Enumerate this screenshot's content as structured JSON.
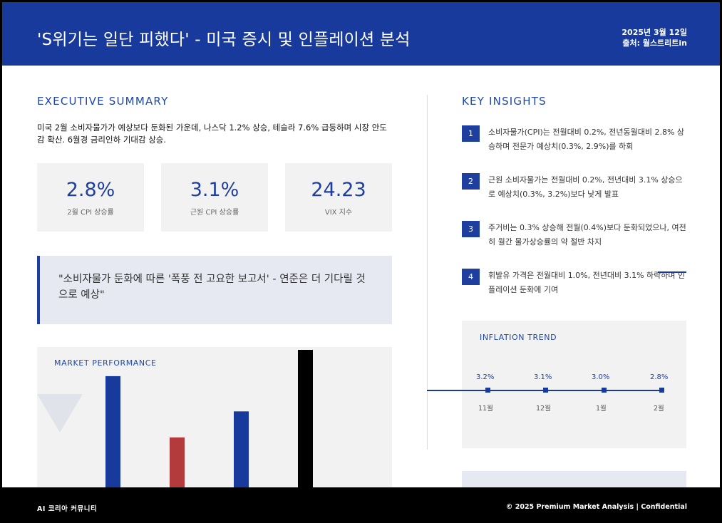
{
  "header": {
    "title": "'S위기는 일단 피했다' - 미국 증시 및 인플레이션 분석",
    "date": "2025년 3월 12일",
    "source": "출처: 월스트리트in"
  },
  "summary": {
    "heading": "EXECUTIVE SUMMARY",
    "text": "미국 2월 소비자물가가 예상보다 둔화된 가운데, 나스닥 1.2% 상승, 테슬라 7.6% 급등하며 시장 안도감 확산. 6월경 금리인하 기대감 상승.",
    "stats": [
      {
        "value": "2.8%",
        "label": "2월 CPI 상승률"
      },
      {
        "value": "3.1%",
        "label": "근원 CPI 상승률"
      },
      {
        "value": "24.23",
        "label": "VIX 지수"
      }
    ],
    "quote": "\"소비자물가 둔화에 따른 '폭풍 전 고요한 보고서' - 연준은 더 기다릴 것으로 예상\""
  },
  "market": {
    "title": "MARKET PERFORMANCE",
    "bars": [
      {
        "value": 0.74,
        "color": "#173a9c"
      },
      {
        "value": 0.34,
        "color": "#b43b3b"
      },
      {
        "value": 0.51,
        "color": "#173a9c"
      },
      {
        "value": 0.92,
        "color": "#000000"
      }
    ]
  },
  "insights": {
    "heading": "KEY INSIGHTS",
    "items": [
      {
        "num": "1",
        "text": "소비자물가(CPI)는 전월대비 0.2%, 전년동월대비 2.8% 상승하며 전문가 예상치(0.3%, 2.9%)를 하회"
      },
      {
        "num": "2",
        "text": "근원 소비자물가는 전월대비 0.2%, 전년대비 3.1% 상승으로 예상치(0.3%, 3.2%)보다 낮게 발표"
      },
      {
        "num": "3",
        "text": "주거비는 0.3% 상승해 전월(0.4%)보다 둔화되었으나, 여전히 월간 물가상승률의 약 절반 차지"
      },
      {
        "num": "4",
        "text": "휘발유 가격은 전월대비 1.0%, 전년대비 3.1% 하락하며 인플레이션 둔화에 기여"
      }
    ]
  },
  "trend": {
    "title": "INFLATION TREND",
    "points": [
      {
        "month": "11월",
        "value": "3.2%"
      },
      {
        "month": "12월",
        "value": "3.1%"
      },
      {
        "month": "1월",
        "value": "3.0%"
      },
      {
        "month": "2월",
        "value": "2.8%"
      }
    ]
  },
  "footer": {
    "left": "AI 코리아 커뮤니티",
    "right": "© 2025 Premium Market Analysis | Confidential"
  },
  "colors": {
    "primary": "#173a9c",
    "accent_red": "#b43b3b",
    "panel": "#f2f2f2"
  }
}
